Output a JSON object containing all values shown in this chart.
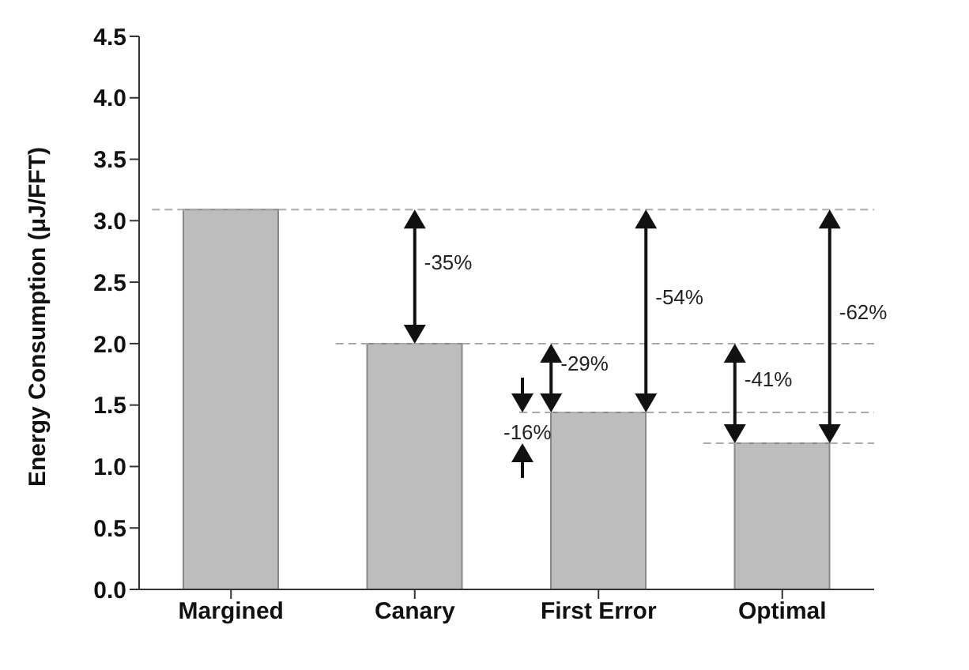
{
  "chart_data": {
    "type": "bar",
    "ylabel": "Energy Consumption (μJ/FFT)",
    "categories": [
      "Margined",
      "Canary",
      "First Error",
      "Optimal"
    ],
    "values": [
      3.09,
      2.0,
      1.44,
      1.19
    ],
    "color": "#bdbdbd",
    "ylim": [
      0,
      4.5
    ],
    "yticks": [
      {
        "value": 0,
        "label": "0.0"
      },
      {
        "value": 0.5,
        "label": "0.5"
      },
      {
        "value": 1,
        "label": "1.0"
      },
      {
        "value": 1.5,
        "label": "1.5"
      },
      {
        "value": 2,
        "label": "2.0"
      },
      {
        "value": 2.5,
        "label": "2.5"
      },
      {
        "value": 3,
        "label": "3.0"
      },
      {
        "value": 3.5,
        "label": "3.5"
      },
      {
        "value": 4,
        "label": "4.0"
      },
      {
        "value": 4.5,
        "label": "4.5"
      }
    ],
    "ref_lines": [
      {
        "axis": "y",
        "value": 3.09,
        "color": "#aaaaaa",
        "line_style": "dashed"
      },
      {
        "axis": "y",
        "value": 2.0,
        "color": "#aaaaaa",
        "line_style": "dashed"
      },
      {
        "axis": "y",
        "value": 1.44,
        "color": "#aaaaaa",
        "line_style": "dashed"
      },
      {
        "axis": "y",
        "value": 1.19,
        "color": "#aaaaaa",
        "line_style": "dashed"
      }
    ],
    "annotations": [
      "-35%",
      "-54%",
      "-29%",
      "-16%",
      "-41%",
      "-62%"
    ]
  }
}
